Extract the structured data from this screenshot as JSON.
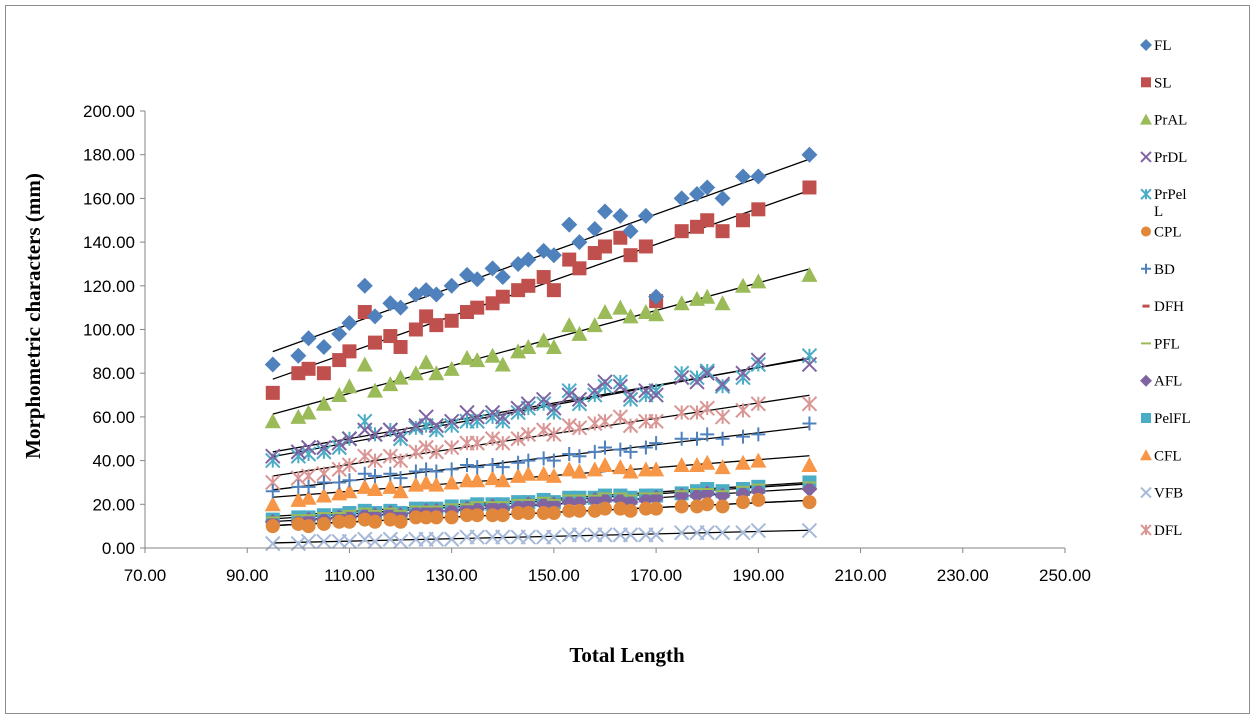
{
  "chart_data": {
    "type": "scatter",
    "title": "",
    "xlabel": "Total Length",
    "ylabel": "Morphometric characters (mm)",
    "xlim": [
      70,
      250
    ],
    "ylim": [
      0,
      200
    ],
    "xticks": [
      "70.00",
      "90.00",
      "110.00",
      "130.00",
      "150.00",
      "170.00",
      "190.00",
      "210.00",
      "230.00",
      "250.00"
    ],
    "yticks": [
      "0.00",
      "20.00",
      "40.00",
      "60.00",
      "80.00",
      "100.00",
      "120.00",
      "140.00",
      "160.00",
      "180.00",
      "200.00"
    ],
    "grid": false,
    "legend": "right",
    "trendlines": true,
    "x": [
      95,
      100,
      102,
      105,
      108,
      110,
      113,
      115,
      118,
      120,
      123,
      125,
      127,
      130,
      133,
      135,
      138,
      140,
      143,
      145,
      148,
      150,
      153,
      155,
      158,
      160,
      163,
      165,
      168,
      170,
      175,
      178,
      180,
      183,
      187,
      190,
      200
    ],
    "series": [
      {
        "name": "FL",
        "marker": "diamond",
        "color": "#4f81bd",
        "values": [
          84,
          88,
          96,
          92,
          98,
          103,
          120,
          106,
          112,
          110,
          116,
          118,
          116,
          120,
          125,
          123,
          128,
          124,
          130,
          132,
          136,
          134,
          148,
          140,
          146,
          154,
          152,
          145,
          152,
          115,
          160,
          162,
          165,
          160,
          170,
          170,
          180
        ]
      },
      {
        "name": "SL",
        "marker": "square",
        "color": "#c0504d",
        "values": [
          71,
          80,
          82,
          80,
          86,
          90,
          108,
          94,
          97,
          92,
          100,
          106,
          102,
          104,
          108,
          110,
          112,
          115,
          118,
          120,
          124,
          118,
          132,
          128,
          135,
          138,
          142,
          134,
          138,
          113,
          145,
          147,
          150,
          145,
          150,
          155,
          165
        ]
      },
      {
        "name": "PrAL",
        "marker": "triangle",
        "color": "#9bbb59",
        "values": [
          58,
          60,
          62,
          66,
          70,
          74,
          84,
          72,
          75,
          78,
          80,
          85,
          80,
          82,
          87,
          86,
          88,
          84,
          90,
          92,
          95,
          92,
          102,
          98,
          102,
          108,
          110,
          106,
          108,
          107,
          112,
          114,
          115,
          112,
          120,
          122,
          125
        ]
      },
      {
        "name": "PrDL",
        "marker": "x",
        "color": "#8064a2",
        "values": [
          42,
          44,
          46,
          46,
          48,
          50,
          54,
          52,
          54,
          52,
          56,
          60,
          56,
          58,
          62,
          60,
          62,
          60,
          64,
          66,
          68,
          64,
          70,
          68,
          72,
          76,
          74,
          70,
          72,
          70,
          78,
          76,
          80,
          75,
          80,
          86,
          84
        ]
      },
      {
        "name": "PrPelL",
        "marker": "star",
        "color": "#4bacc6",
        "values": [
          40,
          42,
          43,
          44,
          46,
          50,
          58,
          52,
          54,
          50,
          55,
          56,
          54,
          56,
          58,
          58,
          60,
          58,
          62,
          64,
          66,
          62,
          72,
          66,
          70,
          74,
          76,
          68,
          70,
          72,
          80,
          78,
          81,
          74,
          78,
          84,
          88
        ]
      },
      {
        "name": "CPL",
        "marker": "circle",
        "color": "#e0873b",
        "values": [
          10,
          11,
          10,
          11,
          12,
          12,
          13,
          12,
          13,
          12,
          14,
          14,
          14,
          14,
          15,
          15,
          15,
          15,
          16,
          16,
          16,
          16,
          17,
          17,
          17,
          18,
          18,
          17,
          18,
          18,
          19,
          19,
          20,
          19,
          21,
          22,
          21
        ]
      },
      {
        "name": "BD",
        "marker": "plus",
        "color": "#4f81bd",
        "values": [
          26,
          28,
          28,
          30,
          30,
          31,
          34,
          33,
          34,
          32,
          35,
          36,
          35,
          36,
          38,
          37,
          38,
          37,
          39,
          40,
          41,
          40,
          43,
          42,
          44,
          46,
          45,
          44,
          46,
          48,
          50,
          50,
          52,
          50,
          51,
          52,
          57
        ]
      },
      {
        "name": "DFH",
        "marker": "dash",
        "color": "#c0504d",
        "values": [
          10,
          11,
          10,
          11,
          12,
          12,
          13,
          12,
          13,
          12,
          14,
          14,
          14,
          14,
          15,
          15,
          15,
          15,
          16,
          16,
          16,
          16,
          17,
          17,
          17,
          18,
          18,
          17,
          18,
          18,
          19,
          19,
          20,
          19,
          21,
          22,
          21
        ]
      },
      {
        "name": "PFL",
        "marker": "line",
        "color": "#9bbb59",
        "values": [
          14,
          15,
          15,
          16,
          16,
          17,
          18,
          17,
          18,
          17,
          19,
          19,
          19,
          20,
          20,
          21,
          21,
          21,
          22,
          22,
          23,
          22,
          24,
          24,
          24,
          25,
          25,
          24,
          25,
          25,
          26,
          27,
          27,
          26,
          28,
          29,
          30
        ]
      },
      {
        "name": "AFL",
        "marker": "diamond",
        "color": "#8064a2",
        "values": [
          12,
          12,
          13,
          13,
          14,
          14,
          15,
          15,
          16,
          15,
          16,
          17,
          17,
          17,
          18,
          18,
          19,
          18,
          19,
          20,
          20,
          20,
          21,
          21,
          22,
          22,
          22,
          21,
          22,
          23,
          24,
          24,
          25,
          24,
          25,
          26,
          27
        ]
      },
      {
        "name": "PelFL",
        "marker": "square",
        "color": "#4bacc6",
        "values": [
          13,
          14,
          14,
          15,
          15,
          16,
          17,
          16,
          17,
          16,
          18,
          18,
          18,
          19,
          19,
          20,
          20,
          20,
          21,
          21,
          22,
          21,
          23,
          23,
          23,
          24,
          24,
          23,
          24,
          24,
          25,
          26,
          27,
          26,
          27,
          28,
          30
        ]
      },
      {
        "name": "CFL",
        "marker": "triangle",
        "color": "#f79646",
        "values": [
          20,
          22,
          23,
          24,
          25,
          26,
          28,
          27,
          28,
          26,
          29,
          30,
          29,
          30,
          31,
          31,
          32,
          31,
          33,
          34,
          34,
          33,
          36,
          35,
          36,
          38,
          37,
          35,
          36,
          36,
          38,
          38,
          39,
          37,
          39,
          40,
          38
        ]
      },
      {
        "name": "VFB",
        "marker": "x",
        "color": "#a6b9d9",
        "values": [
          2,
          2,
          3,
          3,
          3,
          3,
          4,
          3,
          4,
          3,
          4,
          4,
          4,
          4,
          5,
          5,
          5,
          5,
          5,
          5,
          5,
          5,
          6,
          6,
          6,
          6,
          6,
          6,
          6,
          6,
          7,
          7,
          7,
          7,
          7,
          8,
          8
        ]
      },
      {
        "name": "DFL",
        "marker": "star",
        "color": "#d99694",
        "values": [
          30,
          32,
          33,
          34,
          36,
          38,
          42,
          40,
          42,
          40,
          44,
          46,
          44,
          46,
          48,
          48,
          50,
          48,
          50,
          52,
          54,
          52,
          56,
          55,
          57,
          58,
          60,
          56,
          58,
          58,
          62,
          62,
          64,
          60,
          63,
          66,
          66
        ]
      }
    ]
  }
}
